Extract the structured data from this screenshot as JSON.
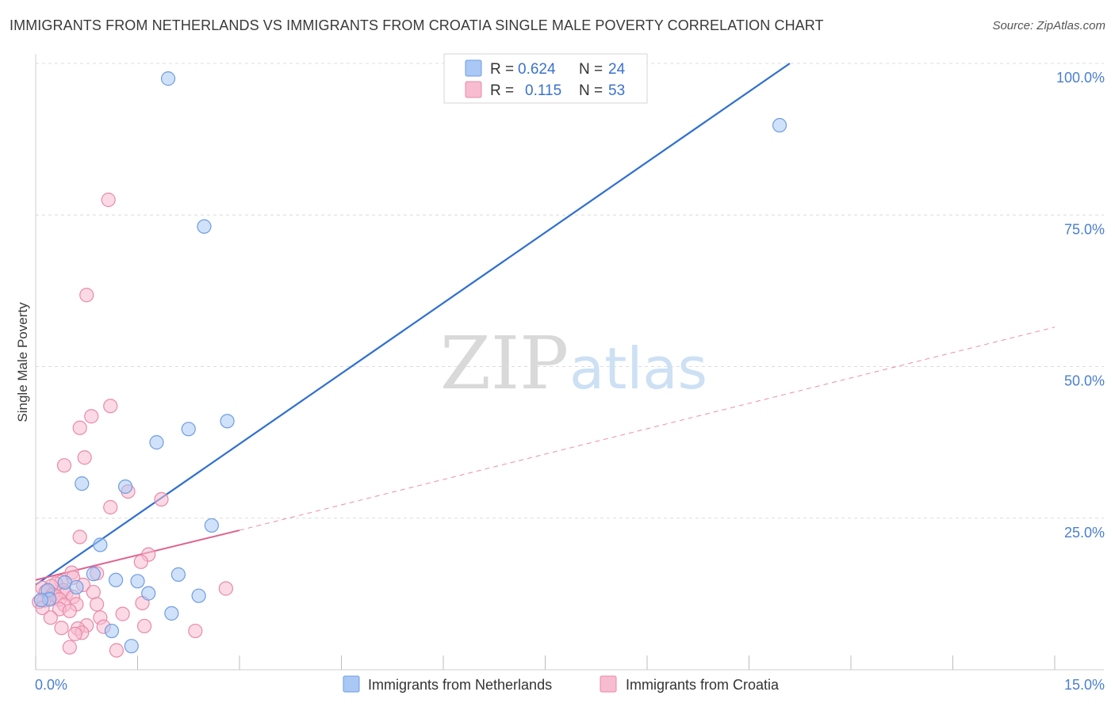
{
  "header": {
    "title": "IMMIGRANTS FROM NETHERLANDS VS IMMIGRANTS FROM CROATIA SINGLE MALE POVERTY CORRELATION CHART",
    "source": "Source: ZipAtlas.com"
  },
  "watermark": {
    "zip": "ZIP",
    "atlas": "atlas"
  },
  "colors": {
    "netherlands_fill": "#aac8f5",
    "netherlands_stroke": "#6f9de0",
    "netherlands_line": "#2e6fd0",
    "croatia_fill": "#f8bcd0",
    "croatia_stroke": "#e98aa8",
    "croatia_line": "#e0608c",
    "grid": "#dcdcdc",
    "tick_text": "#4a7fd0"
  },
  "legend": {
    "rows": [
      {
        "r_label": "R =",
        "r_value": "0.624",
        "n_label": "N =",
        "n_value": "24"
      },
      {
        "r_label": "R =",
        "r_value": "0.115",
        "n_label": "N =",
        "n_value": "53"
      }
    ]
  },
  "chart_data": {
    "type": "scatter",
    "title": "IMMIGRANTS FROM NETHERLANDS VS IMMIGRANTS FROM CROATIA SINGLE MALE POVERTY CORRELATION CHART",
    "xlabel": "",
    "ylabel": "Single Male Poverty",
    "xlim": [
      0,
      15
    ],
    "ylim": [
      0,
      100
    ],
    "x_tick_labels": [
      "0.0%",
      "15.0%"
    ],
    "y_ticks": [
      25,
      50,
      75,
      100
    ],
    "y_tick_labels": [
      "25.0%",
      "50.0%",
      "75.0%",
      "100.0%"
    ],
    "legend_position": "top-center",
    "series": [
      {
        "name": "Immigrants from Netherlands",
        "r": 0.624,
        "n": 24,
        "points": [
          [
            1.95,
            97.5
          ],
          [
            10.95,
            89.8
          ],
          [
            2.48,
            73.1
          ],
          [
            2.82,
            41.0
          ],
          [
            2.25,
            39.7
          ],
          [
            1.78,
            37.5
          ],
          [
            0.68,
            30.7
          ],
          [
            1.32,
            30.2
          ],
          [
            2.59,
            23.8
          ],
          [
            0.95,
            20.6
          ],
          [
            0.85,
            15.8
          ],
          [
            2.1,
            15.7
          ],
          [
            1.18,
            14.8
          ],
          [
            1.5,
            14.6
          ],
          [
            0.43,
            14.4
          ],
          [
            0.6,
            13.6
          ],
          [
            0.18,
            13.1
          ],
          [
            1.66,
            12.6
          ],
          [
            2.4,
            12.2
          ],
          [
            0.2,
            11.6
          ],
          [
            0.08,
            11.5
          ],
          [
            2.0,
            9.3
          ],
          [
            1.12,
            6.4
          ],
          [
            1.41,
            3.9
          ]
        ],
        "trend": {
          "x1": 0.0,
          "y1": 14.0,
          "x2": 11.1,
          "y2": 100.0
        }
      },
      {
        "name": "Immigrants from Croatia",
        "r": 0.115,
        "n": 53,
        "points": [
          [
            1.07,
            77.5
          ],
          [
            0.75,
            61.8
          ],
          [
            1.1,
            43.5
          ],
          [
            0.82,
            41.8
          ],
          [
            0.65,
            39.9
          ],
          [
            0.72,
            35.0
          ],
          [
            0.42,
            33.7
          ],
          [
            1.36,
            29.4
          ],
          [
            1.85,
            28.1
          ],
          [
            1.1,
            26.8
          ],
          [
            0.65,
            21.9
          ],
          [
            1.66,
            19.0
          ],
          [
            1.55,
            17.8
          ],
          [
            0.53,
            16.0
          ],
          [
            0.9,
            15.9
          ],
          [
            0.55,
            15.2
          ],
          [
            0.38,
            14.5
          ],
          [
            0.3,
            14.2
          ],
          [
            0.7,
            14.0
          ],
          [
            0.23,
            13.8
          ],
          [
            0.1,
            13.5
          ],
          [
            2.8,
            13.4
          ],
          [
            0.41,
            13.1
          ],
          [
            0.15,
            12.9
          ],
          [
            0.85,
            12.8
          ],
          [
            0.45,
            12.6
          ],
          [
            0.25,
            12.4
          ],
          [
            0.3,
            12.1
          ],
          [
            0.55,
            12.0
          ],
          [
            0.2,
            11.8
          ],
          [
            0.12,
            11.4
          ],
          [
            0.35,
            11.6
          ],
          [
            0.05,
            11.2
          ],
          [
            1.57,
            11.0
          ],
          [
            0.6,
            10.8
          ],
          [
            0.9,
            10.8
          ],
          [
            0.42,
            10.7
          ],
          [
            0.1,
            10.2
          ],
          [
            0.35,
            10.0
          ],
          [
            0.5,
            9.7
          ],
          [
            1.28,
            9.2
          ],
          [
            0.22,
            8.6
          ],
          [
            0.95,
            8.6
          ],
          [
            0.75,
            7.3
          ],
          [
            1.0,
            7.1
          ],
          [
            1.6,
            7.2
          ],
          [
            0.62,
            6.8
          ],
          [
            0.38,
            6.9
          ],
          [
            0.68,
            6.1
          ],
          [
            0.58,
            5.9
          ],
          [
            2.35,
            6.4
          ],
          [
            0.5,
            3.7
          ],
          [
            1.19,
            3.2
          ]
        ],
        "trend": {
          "x1": 0.0,
          "y1": 14.8,
          "x2": 3.0,
          "y2": 23.0
        },
        "trend_extension": {
          "x1": 3.0,
          "y1": 23.0,
          "x2": 15.0,
          "y2": 56.5
        }
      }
    ]
  },
  "bottom_legend": {
    "items": [
      {
        "label": "Immigrants from Netherlands"
      },
      {
        "label": "Immigrants from Croatia"
      }
    ]
  }
}
